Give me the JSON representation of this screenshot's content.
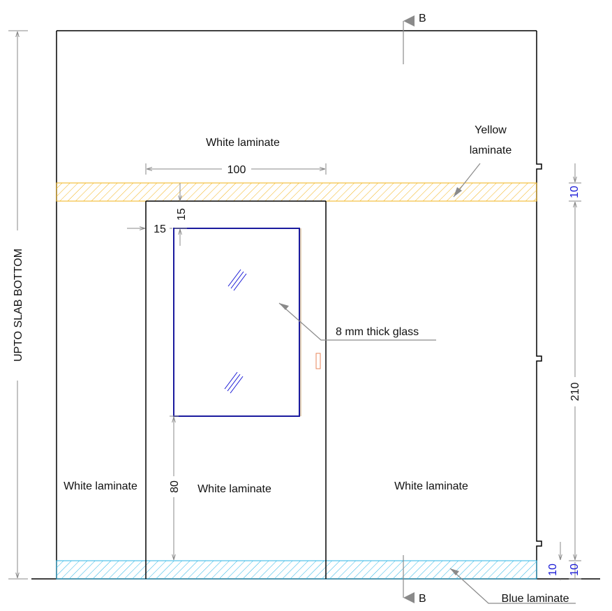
{
  "labels": {
    "white_laminate_top": "White laminate",
    "yellow_laminate_line1": "Yellow",
    "yellow_laminate_line2": "laminate",
    "glass_note": "8 mm thick glass",
    "white_laminate_left": "White laminate",
    "white_laminate_door": "White laminate",
    "white_laminate_right": "White laminate",
    "blue_laminate": "Blue laminate",
    "upto_slab_bottom": "UPTO SLAB BOTTOM"
  },
  "dimensions": {
    "door_width": "100",
    "glass_top_offset": "15",
    "glass_side_offset": "15",
    "glass_bottom_height": "80",
    "yellow_band_height": "10",
    "door_height": "210",
    "blue_band_height": "10"
  },
  "section_marks": {
    "top": "B",
    "bottom": "B"
  },
  "colors": {
    "yellow_hatch": "#f2b31a",
    "blue_hatch": "#2bb6e6",
    "glass_outline": "#1a1a9e",
    "dimension_blue": "#1a1ad6",
    "handle": "#e8865a",
    "outline": "#000000",
    "leader": "#8a8a8a"
  }
}
